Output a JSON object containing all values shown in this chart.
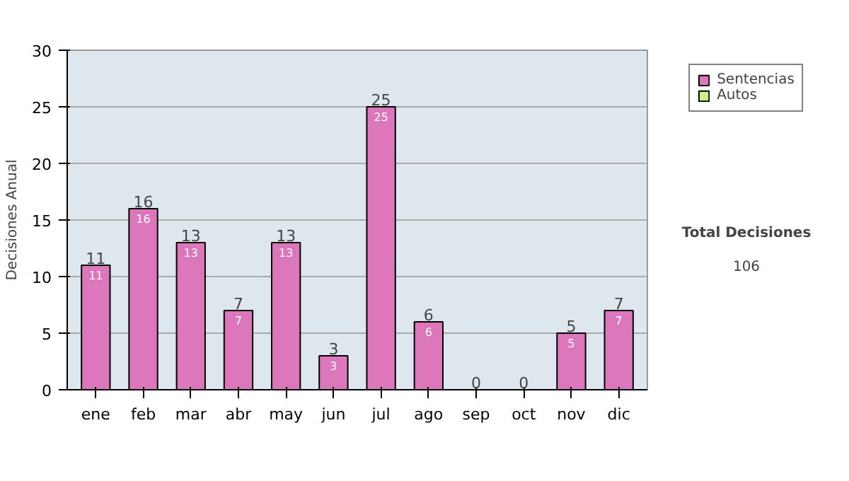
{
  "chart_data": {
    "type": "bar",
    "stacked": true,
    "ylabel": "Decisiones Anual",
    "categories": [
      "ene",
      "feb",
      "mar",
      "abr",
      "may",
      "jun",
      "jul",
      "ago",
      "sep",
      "oct",
      "nov",
      "dic"
    ],
    "series": [
      {
        "name": "Sentencias",
        "color": "#dd77bb",
        "values": [
          11,
          16,
          13,
          7,
          13,
          3,
          25,
          6,
          0,
          0,
          5,
          7
        ],
        "value_labels": [
          "11",
          "16",
          "13",
          "7",
          "13",
          "3",
          "25",
          "6",
          null,
          null,
          "5",
          "7"
        ]
      },
      {
        "name": "Autos",
        "color": "#ccee88",
        "values": [
          0,
          0,
          0,
          0,
          0,
          0,
          0,
          0,
          0,
          0,
          0,
          0
        ]
      }
    ],
    "totals": [
      "11",
      "16",
      "13",
      "7",
      "13",
      "3",
      "25",
      "6",
      "0",
      "0",
      "5",
      "7"
    ],
    "ylim": [
      0,
      30
    ],
    "yticks": [
      0,
      5,
      10,
      15,
      20,
      25,
      30
    ],
    "grid": "y",
    "legend": "right",
    "annotations": [
      "Total Decisiones",
      "106"
    ]
  }
}
